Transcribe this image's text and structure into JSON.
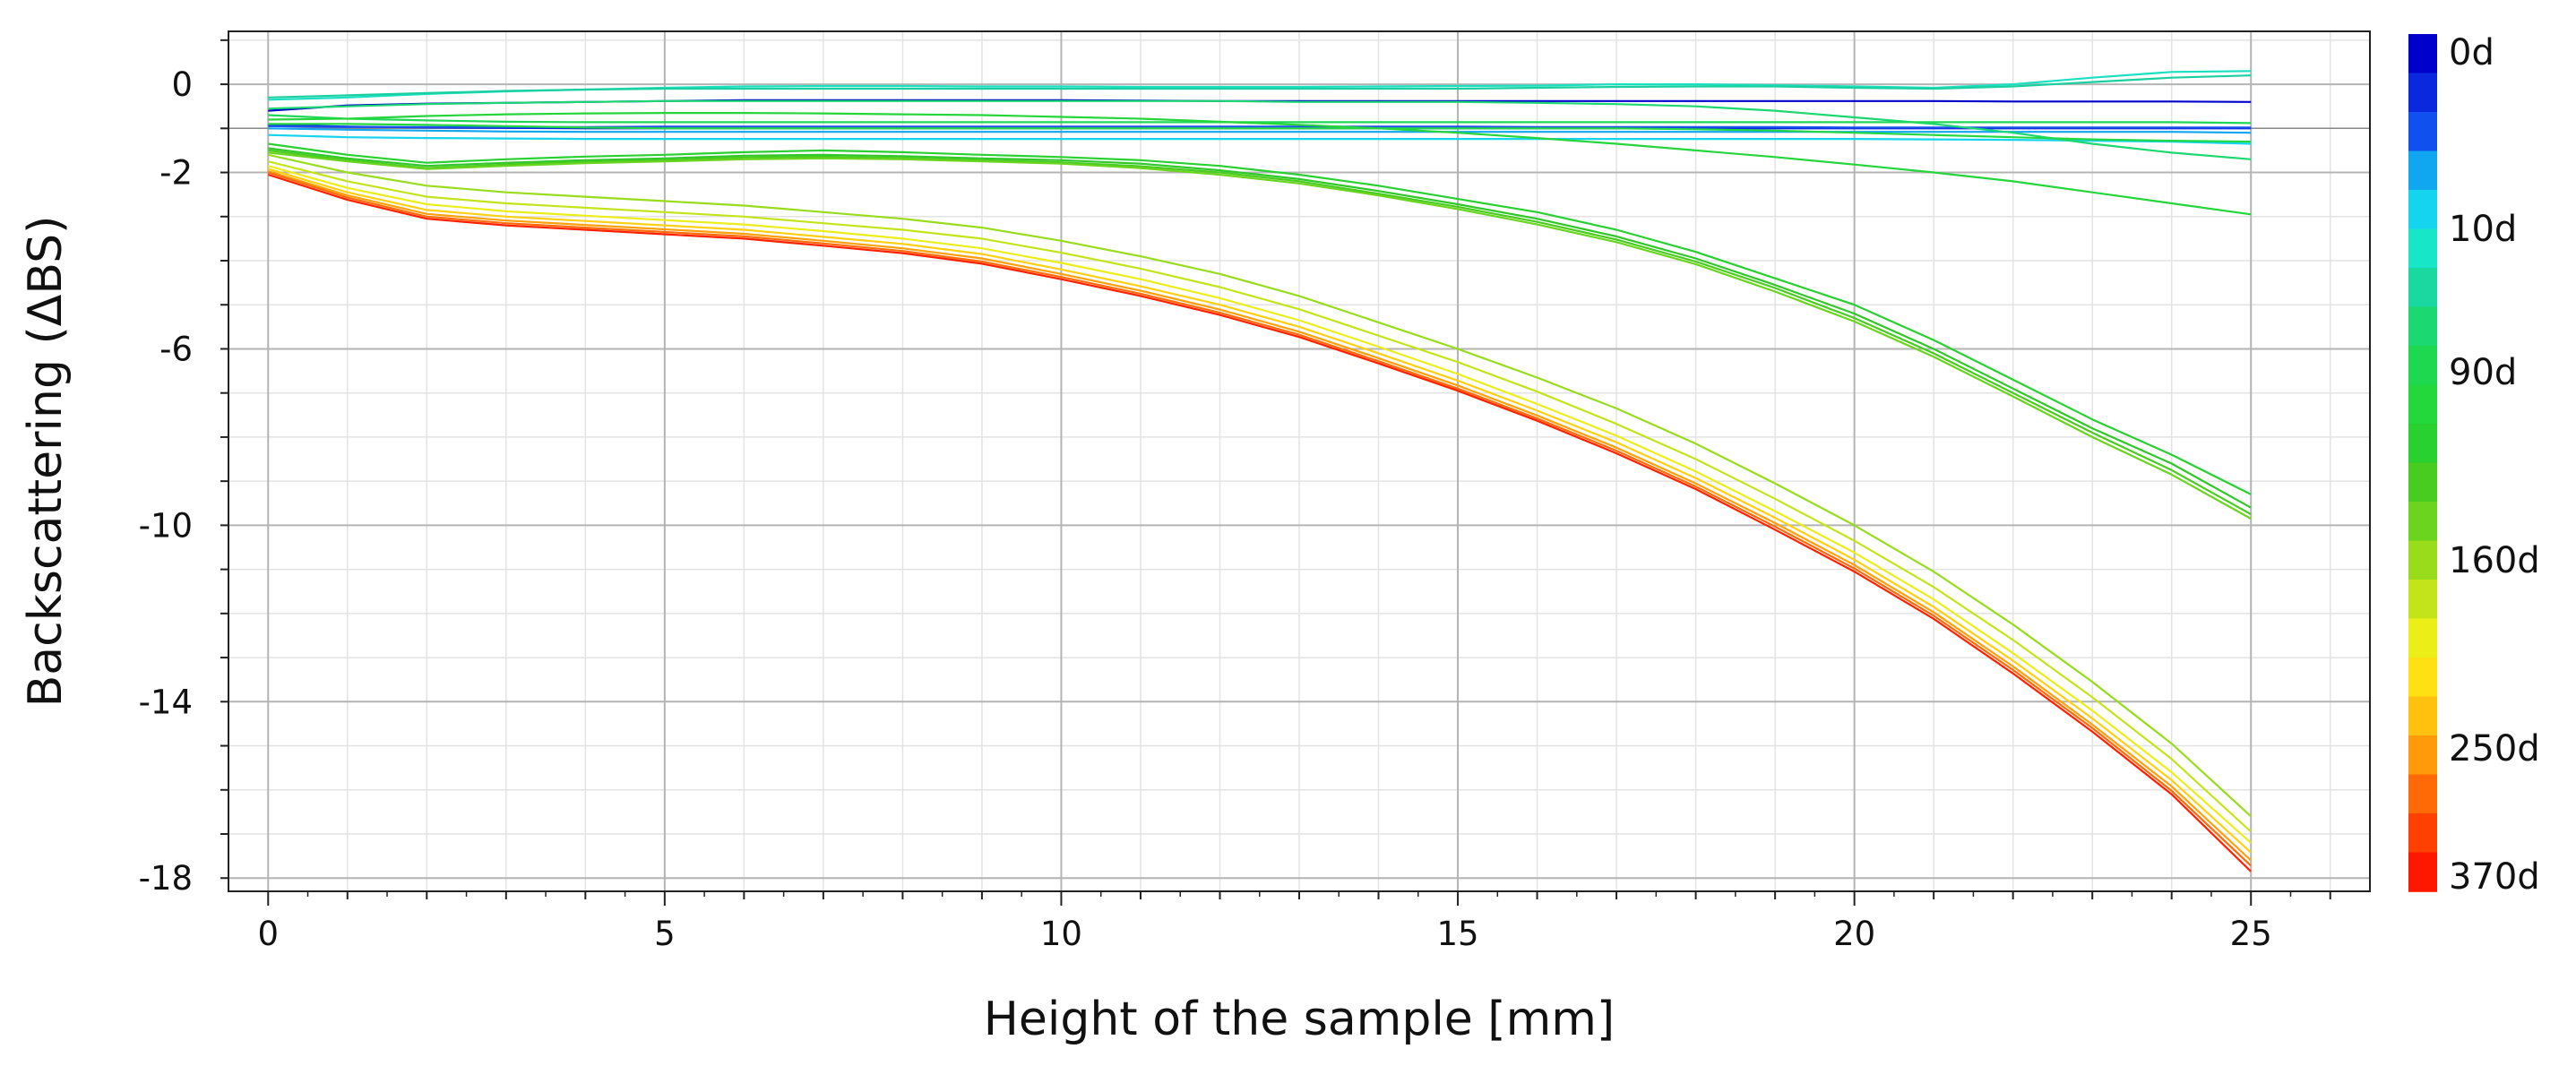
{
  "chart_data": {
    "type": "line",
    "title": "",
    "xlabel": "Height of the sample [mm]",
    "ylabel": "Backscattering (ΔBS)",
    "xlim": [
      -0.5,
      26.5
    ],
    "ylim": [
      -18.3,
      1.2
    ],
    "x_ticks": [
      0,
      5,
      10,
      15,
      20,
      25
    ],
    "y_ticks": [
      0,
      -2,
      -6,
      -10,
      -14,
      -18
    ],
    "grid": true,
    "x": [
      0,
      1,
      2,
      3,
      4,
      5,
      6,
      7,
      8,
      9,
      10,
      11,
      12,
      13,
      14,
      15,
      16,
      17,
      18,
      19,
      20,
      21,
      22,
      23,
      24,
      25
    ],
    "series": [
      {
        "name": "0d",
        "color": "#0000cc",
        "values": [
          -0.6,
          -0.48,
          -0.44,
          -0.42,
          -0.4,
          -0.38,
          -0.36,
          -0.36,
          -0.36,
          -0.36,
          -0.36,
          -0.37,
          -0.38,
          -0.38,
          -0.38,
          -0.38,
          -0.38,
          -0.38,
          -0.38,
          -0.38,
          -0.38,
          -0.38,
          -0.39,
          -0.39,
          -0.39,
          -0.4
        ]
      },
      {
        "name": "",
        "color": "#0a24dd",
        "values": [
          -0.92,
          -0.96,
          -0.98,
          -0.99,
          -1.0,
          -1.0,
          -1.0,
          -1.0,
          -1.0,
          -1.0,
          -1.0,
          -1.0,
          -1.0,
          -1.0,
          -1.0,
          -1.0,
          -1.0,
          -1.0,
          -1.0,
          -1.0,
          -1.0,
          -1.0,
          -1.0,
          -1.0,
          -1.0,
          -1.0
        ]
      },
      {
        "name": "",
        "color": "#1a50ee",
        "values": [
          -0.95,
          -0.97,
          -0.97,
          -0.97,
          -0.97,
          -0.96,
          -0.96,
          -0.96,
          -0.96,
          -0.96,
          -0.96,
          -0.96,
          -0.96,
          -0.96,
          -0.96,
          -0.96,
          -0.97,
          -0.97,
          -0.97,
          -0.97,
          -0.98,
          -0.98,
          -0.98,
          -0.98,
          -0.98,
          -0.98
        ]
      },
      {
        "name": "10d",
        "color": "#10a6f0",
        "values": [
          -1.0,
          -1.03,
          -1.05,
          -1.07,
          -1.08,
          -1.08,
          -1.08,
          -1.08,
          -1.08,
          -1.08,
          -1.08,
          -1.08,
          -1.08,
          -1.08,
          -1.08,
          -1.08,
          -1.08,
          -1.08,
          -1.08,
          -1.08,
          -1.08,
          -1.08,
          -1.08,
          -1.08,
          -1.08,
          -1.1
        ]
      },
      {
        "name": "",
        "color": "#14d4ee",
        "values": [
          -1.15,
          -1.2,
          -1.22,
          -1.23,
          -1.24,
          -1.24,
          -1.24,
          -1.24,
          -1.24,
          -1.24,
          -1.24,
          -1.24,
          -1.24,
          -1.24,
          -1.24,
          -1.24,
          -1.24,
          -1.24,
          -1.24,
          -1.24,
          -1.24,
          -1.25,
          -1.26,
          -1.28,
          -1.3,
          -1.35
        ]
      },
      {
        "name": "",
        "color": "#18e0c0",
        "values": [
          -0.35,
          -0.3,
          -0.22,
          -0.16,
          -0.12,
          -0.08,
          -0.05,
          -0.04,
          -0.04,
          -0.05,
          -0.05,
          -0.06,
          -0.06,
          -0.06,
          -0.05,
          -0.04,
          -0.03,
          0.0,
          0.0,
          -0.02,
          -0.05,
          -0.08,
          0.0,
          0.15,
          0.28,
          0.3
        ]
      },
      {
        "name": "",
        "color": "#1ad0a0",
        "values": [
          -0.3,
          -0.25,
          -0.2,
          -0.15,
          -0.12,
          -0.1,
          -0.1,
          -0.1,
          -0.1,
          -0.1,
          -0.1,
          -0.1,
          -0.1,
          -0.1,
          -0.1,
          -0.1,
          -0.08,
          -0.06,
          -0.05,
          -0.05,
          -0.08,
          -0.1,
          -0.05,
          0.05,
          0.15,
          0.2
        ]
      },
      {
        "name": "90d",
        "color": "#1cd870",
        "values": [
          -0.55,
          -0.5,
          -0.45,
          -0.42,
          -0.4,
          -0.38,
          -0.38,
          -0.38,
          -0.38,
          -0.38,
          -0.38,
          -0.38,
          -0.38,
          -0.4,
          -0.4,
          -0.4,
          -0.42,
          -0.45,
          -0.5,
          -0.6,
          -0.75,
          -0.9,
          -1.1,
          -1.35,
          -1.55,
          -1.7
        ]
      },
      {
        "name": "",
        "color": "#1ed855",
        "values": [
          -0.7,
          -0.78,
          -0.82,
          -0.85,
          -0.86,
          -0.86,
          -0.86,
          -0.86,
          -0.86,
          -0.86,
          -0.86,
          -0.86,
          -0.86,
          -0.86,
          -0.86,
          -0.86,
          -0.86,
          -0.86,
          -0.86,
          -0.86,
          -0.86,
          -0.86,
          -0.86,
          -0.86,
          -0.86,
          -0.88
        ]
      },
      {
        "name": "",
        "color": "#22d840",
        "values": [
          -0.9,
          -0.9,
          -0.92,
          -0.95,
          -0.98,
          -1.0,
          -1.0,
          -1.0,
          -1.0,
          -1.0,
          -1.0,
          -1.0,
          -1.0,
          -1.0,
          -1.0,
          -1.0,
          -1.0,
          -1.0,
          -1.02,
          -1.05,
          -1.1,
          -1.15,
          -1.2,
          -1.25,
          -1.28,
          -1.3
        ]
      },
      {
        "name": "",
        "color": "#25d63a",
        "values": [
          -0.8,
          -0.78,
          -0.72,
          -0.68,
          -0.66,
          -0.65,
          -0.65,
          -0.66,
          -0.68,
          -0.7,
          -0.74,
          -0.78,
          -0.85,
          -0.92,
          -1.0,
          -1.1,
          -1.22,
          -1.35,
          -1.5,
          -1.65,
          -1.82,
          -2.0,
          -2.2,
          -2.45,
          -2.7,
          -2.95
        ]
      },
      {
        "name": "",
        "color": "#28d030",
        "values": [
          -1.35,
          -1.6,
          -1.78,
          -1.7,
          -1.64,
          -1.6,
          -1.54,
          -1.5,
          -1.54,
          -1.6,
          -1.65,
          -1.72,
          -1.85,
          -2.05,
          -2.3,
          -2.6,
          -2.9,
          -3.3,
          -3.8,
          -4.4,
          -5.0,
          -5.8,
          -6.7,
          -7.6,
          -8.4,
          -9.3
        ]
      },
      {
        "name": "",
        "color": "#30c828",
        "values": [
          -1.45,
          -1.68,
          -1.85,
          -1.78,
          -1.72,
          -1.68,
          -1.62,
          -1.6,
          -1.63,
          -1.68,
          -1.72,
          -1.8,
          -1.95,
          -2.15,
          -2.42,
          -2.72,
          -3.05,
          -3.45,
          -3.95,
          -4.55,
          -5.2,
          -6.0,
          -6.9,
          -7.8,
          -8.6,
          -9.6
        ]
      },
      {
        "name": "",
        "color": "#48cc20",
        "values": [
          -1.5,
          -1.72,
          -1.9,
          -1.82,
          -1.76,
          -1.72,
          -1.66,
          -1.64,
          -1.67,
          -1.72,
          -1.77,
          -1.86,
          -2.0,
          -2.2,
          -2.48,
          -2.78,
          -3.12,
          -3.52,
          -4.02,
          -4.62,
          -5.3,
          -6.1,
          -7.0,
          -7.9,
          -8.75,
          -9.75
        ]
      },
      {
        "name": "160d",
        "color": "#6ad41e",
        "values": [
          -1.55,
          -1.75,
          -1.92,
          -1.85,
          -1.79,
          -1.75,
          -1.7,
          -1.68,
          -1.7,
          -1.75,
          -1.8,
          -1.9,
          -2.05,
          -2.25,
          -2.52,
          -2.83,
          -3.18,
          -3.58,
          -4.08,
          -4.7,
          -5.38,
          -6.18,
          -7.08,
          -8.0,
          -8.85,
          -9.85
        ]
      },
      {
        "name": "",
        "color": "#98dc1c",
        "values": [
          -1.6,
          -2.0,
          -2.3,
          -2.45,
          -2.55,
          -2.65,
          -2.75,
          -2.9,
          -3.05,
          -3.25,
          -3.55,
          -3.9,
          -4.3,
          -4.8,
          -5.4,
          -6.0,
          -6.65,
          -7.35,
          -8.15,
          -9.05,
          -10.0,
          -11.05,
          -12.25,
          -13.55,
          -14.95,
          -16.6
        ]
      },
      {
        "name": "",
        "color": "#c4e41a",
        "values": [
          -1.75,
          -2.2,
          -2.55,
          -2.7,
          -2.8,
          -2.9,
          -3.0,
          -3.15,
          -3.3,
          -3.5,
          -3.82,
          -4.18,
          -4.6,
          -5.1,
          -5.7,
          -6.3,
          -6.97,
          -7.7,
          -8.5,
          -9.4,
          -10.35,
          -11.4,
          -12.6,
          -13.9,
          -15.3,
          -16.95
        ]
      },
      {
        "name": "",
        "color": "#ecee18",
        "values": [
          -1.85,
          -2.35,
          -2.72,
          -2.88,
          -2.98,
          -3.08,
          -3.18,
          -3.33,
          -3.5,
          -3.72,
          -4.05,
          -4.42,
          -4.85,
          -5.35,
          -5.95,
          -6.57,
          -7.25,
          -7.97,
          -8.78,
          -9.68,
          -10.62,
          -11.68,
          -12.9,
          -14.2,
          -15.6,
          -17.2
        ]
      },
      {
        "name": "250d",
        "color": "#ffd010",
        "values": [
          -1.92,
          -2.45,
          -2.85,
          -3.0,
          -3.1,
          -3.2,
          -3.3,
          -3.46,
          -3.62,
          -3.85,
          -4.2,
          -4.58,
          -5.0,
          -5.5,
          -6.1,
          -6.72,
          -7.4,
          -8.12,
          -8.93,
          -9.83,
          -10.78,
          -11.85,
          -13.07,
          -14.38,
          -15.78,
          -17.42
        ]
      },
      {
        "name": "",
        "color": "#ffa00a",
        "values": [
          -1.97,
          -2.52,
          -2.94,
          -3.09,
          -3.19,
          -3.29,
          -3.39,
          -3.55,
          -3.72,
          -3.95,
          -4.3,
          -4.68,
          -5.11,
          -5.61,
          -6.21,
          -6.83,
          -7.51,
          -8.24,
          -9.05,
          -9.95,
          -10.9,
          -11.97,
          -13.2,
          -14.52,
          -15.92,
          -17.6
        ]
      },
      {
        "name": "",
        "color": "#ff6a06",
        "values": [
          -2.0,
          -2.57,
          -3.0,
          -3.15,
          -3.25,
          -3.35,
          -3.45,
          -3.61,
          -3.78,
          -4.02,
          -4.37,
          -4.75,
          -5.18,
          -5.68,
          -6.28,
          -6.9,
          -7.58,
          -8.31,
          -9.12,
          -10.03,
          -10.98,
          -12.05,
          -13.28,
          -14.6,
          -16.02,
          -17.72
        ]
      },
      {
        "name": "370d",
        "color": "#ff2000",
        "values": [
          -2.05,
          -2.62,
          -3.05,
          -3.2,
          -3.3,
          -3.4,
          -3.5,
          -3.66,
          -3.83,
          -4.07,
          -4.42,
          -4.8,
          -5.23,
          -5.73,
          -6.33,
          -6.95,
          -7.63,
          -8.37,
          -9.18,
          -10.1,
          -11.05,
          -12.12,
          -13.36,
          -14.68,
          -16.1,
          -17.85
        ]
      }
    ],
    "colorbar": {
      "labels": [
        "0d",
        "10d",
        "90d",
        "160d",
        "250d",
        "370d"
      ],
      "colors": [
        "#0000cc",
        "#0a28dd",
        "#1050ee",
        "#10a6f0",
        "#14d4ee",
        "#18e6c8",
        "#1ad8a0",
        "#1cd870",
        "#1ed850",
        "#22d83a",
        "#28d030",
        "#48cc20",
        "#6ad41e",
        "#98dc1c",
        "#c4e41a",
        "#ecee18",
        "#ffe012",
        "#ffc00e",
        "#ff9a0a",
        "#ff6a06",
        "#ff4003",
        "#ff1800"
      ]
    }
  }
}
